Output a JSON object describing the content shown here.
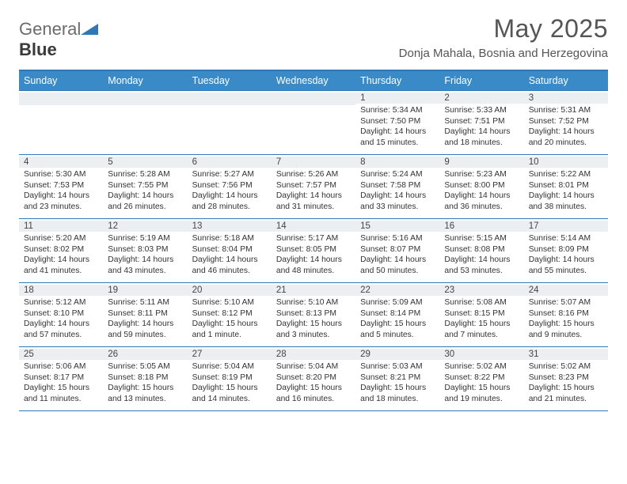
{
  "logo": {
    "text1": "General",
    "text2": "Blue"
  },
  "title": "May 2025",
  "location": "Donja Mahala, Bosnia and Herzegovina",
  "colors": {
    "header_bg": "#3a8ac8",
    "border": "#2f78b5",
    "daybar_bg": "#eceff1",
    "text": "#333333"
  },
  "day_headers": [
    "Sunday",
    "Monday",
    "Tuesday",
    "Wednesday",
    "Thursday",
    "Friday",
    "Saturday"
  ],
  "weeks": [
    [
      {
        "n": "",
        "sr": "",
        "ss": "",
        "dl": ""
      },
      {
        "n": "",
        "sr": "",
        "ss": "",
        "dl": ""
      },
      {
        "n": "",
        "sr": "",
        "ss": "",
        "dl": ""
      },
      {
        "n": "",
        "sr": "",
        "ss": "",
        "dl": ""
      },
      {
        "n": "1",
        "sr": "Sunrise: 5:34 AM",
        "ss": "Sunset: 7:50 PM",
        "dl": "Daylight: 14 hours and 15 minutes."
      },
      {
        "n": "2",
        "sr": "Sunrise: 5:33 AM",
        "ss": "Sunset: 7:51 PM",
        "dl": "Daylight: 14 hours and 18 minutes."
      },
      {
        "n": "3",
        "sr": "Sunrise: 5:31 AM",
        "ss": "Sunset: 7:52 PM",
        "dl": "Daylight: 14 hours and 20 minutes."
      }
    ],
    [
      {
        "n": "4",
        "sr": "Sunrise: 5:30 AM",
        "ss": "Sunset: 7:53 PM",
        "dl": "Daylight: 14 hours and 23 minutes."
      },
      {
        "n": "5",
        "sr": "Sunrise: 5:28 AM",
        "ss": "Sunset: 7:55 PM",
        "dl": "Daylight: 14 hours and 26 minutes."
      },
      {
        "n": "6",
        "sr": "Sunrise: 5:27 AM",
        "ss": "Sunset: 7:56 PM",
        "dl": "Daylight: 14 hours and 28 minutes."
      },
      {
        "n": "7",
        "sr": "Sunrise: 5:26 AM",
        "ss": "Sunset: 7:57 PM",
        "dl": "Daylight: 14 hours and 31 minutes."
      },
      {
        "n": "8",
        "sr": "Sunrise: 5:24 AM",
        "ss": "Sunset: 7:58 PM",
        "dl": "Daylight: 14 hours and 33 minutes."
      },
      {
        "n": "9",
        "sr": "Sunrise: 5:23 AM",
        "ss": "Sunset: 8:00 PM",
        "dl": "Daylight: 14 hours and 36 minutes."
      },
      {
        "n": "10",
        "sr": "Sunrise: 5:22 AM",
        "ss": "Sunset: 8:01 PM",
        "dl": "Daylight: 14 hours and 38 minutes."
      }
    ],
    [
      {
        "n": "11",
        "sr": "Sunrise: 5:20 AM",
        "ss": "Sunset: 8:02 PM",
        "dl": "Daylight: 14 hours and 41 minutes."
      },
      {
        "n": "12",
        "sr": "Sunrise: 5:19 AM",
        "ss": "Sunset: 8:03 PM",
        "dl": "Daylight: 14 hours and 43 minutes."
      },
      {
        "n": "13",
        "sr": "Sunrise: 5:18 AM",
        "ss": "Sunset: 8:04 PM",
        "dl": "Daylight: 14 hours and 46 minutes."
      },
      {
        "n": "14",
        "sr": "Sunrise: 5:17 AM",
        "ss": "Sunset: 8:05 PM",
        "dl": "Daylight: 14 hours and 48 minutes."
      },
      {
        "n": "15",
        "sr": "Sunrise: 5:16 AM",
        "ss": "Sunset: 8:07 PM",
        "dl": "Daylight: 14 hours and 50 minutes."
      },
      {
        "n": "16",
        "sr": "Sunrise: 5:15 AM",
        "ss": "Sunset: 8:08 PM",
        "dl": "Daylight: 14 hours and 53 minutes."
      },
      {
        "n": "17",
        "sr": "Sunrise: 5:14 AM",
        "ss": "Sunset: 8:09 PM",
        "dl": "Daylight: 14 hours and 55 minutes."
      }
    ],
    [
      {
        "n": "18",
        "sr": "Sunrise: 5:12 AM",
        "ss": "Sunset: 8:10 PM",
        "dl": "Daylight: 14 hours and 57 minutes."
      },
      {
        "n": "19",
        "sr": "Sunrise: 5:11 AM",
        "ss": "Sunset: 8:11 PM",
        "dl": "Daylight: 14 hours and 59 minutes."
      },
      {
        "n": "20",
        "sr": "Sunrise: 5:10 AM",
        "ss": "Sunset: 8:12 PM",
        "dl": "Daylight: 15 hours and 1 minute."
      },
      {
        "n": "21",
        "sr": "Sunrise: 5:10 AM",
        "ss": "Sunset: 8:13 PM",
        "dl": "Daylight: 15 hours and 3 minutes."
      },
      {
        "n": "22",
        "sr": "Sunrise: 5:09 AM",
        "ss": "Sunset: 8:14 PM",
        "dl": "Daylight: 15 hours and 5 minutes."
      },
      {
        "n": "23",
        "sr": "Sunrise: 5:08 AM",
        "ss": "Sunset: 8:15 PM",
        "dl": "Daylight: 15 hours and 7 minutes."
      },
      {
        "n": "24",
        "sr": "Sunrise: 5:07 AM",
        "ss": "Sunset: 8:16 PM",
        "dl": "Daylight: 15 hours and 9 minutes."
      }
    ],
    [
      {
        "n": "25",
        "sr": "Sunrise: 5:06 AM",
        "ss": "Sunset: 8:17 PM",
        "dl": "Daylight: 15 hours and 11 minutes."
      },
      {
        "n": "26",
        "sr": "Sunrise: 5:05 AM",
        "ss": "Sunset: 8:18 PM",
        "dl": "Daylight: 15 hours and 13 minutes."
      },
      {
        "n": "27",
        "sr": "Sunrise: 5:04 AM",
        "ss": "Sunset: 8:19 PM",
        "dl": "Daylight: 15 hours and 14 minutes."
      },
      {
        "n": "28",
        "sr": "Sunrise: 5:04 AM",
        "ss": "Sunset: 8:20 PM",
        "dl": "Daylight: 15 hours and 16 minutes."
      },
      {
        "n": "29",
        "sr": "Sunrise: 5:03 AM",
        "ss": "Sunset: 8:21 PM",
        "dl": "Daylight: 15 hours and 18 minutes."
      },
      {
        "n": "30",
        "sr": "Sunrise: 5:02 AM",
        "ss": "Sunset: 8:22 PM",
        "dl": "Daylight: 15 hours and 19 minutes."
      },
      {
        "n": "31",
        "sr": "Sunrise: 5:02 AM",
        "ss": "Sunset: 8:23 PM",
        "dl": "Daylight: 15 hours and 21 minutes."
      }
    ]
  ]
}
